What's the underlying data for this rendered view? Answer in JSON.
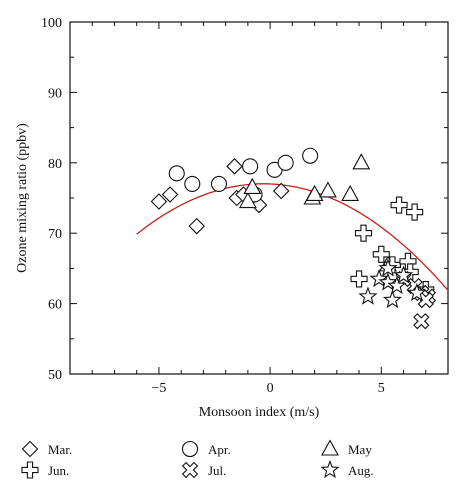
{
  "chart_data": {
    "type": "scatter",
    "title": "",
    "xlabel": "Monsoon index (m/s)",
    "ylabel": "Ozone mixing ratio (ppbv)",
    "xlim": [
      -9,
      8
    ],
    "ylim": [
      50,
      100
    ],
    "x_ticks": [
      -5,
      0,
      5
    ],
    "y_ticks": [
      50,
      60,
      70,
      80,
      90,
      100
    ],
    "x_tick_labels": [
      "−5",
      "0",
      "5"
    ],
    "y_tick_labels": [
      "50",
      "60",
      "70",
      "80",
      "90",
      "100"
    ],
    "grid": false,
    "legend_placement": "below plot, three columns",
    "legend_order": [
      "Mar.",
      "Apr.",
      "May",
      "Jun.",
      "Jul.",
      "Aug."
    ],
    "fit_color": "#cc1f1f",
    "fit_curve": {
      "type": "quadratic",
      "coefficients": [
        77.0,
        -0.13,
        -0.22
      ],
      "x_range": [
        -6,
        8.2
      ]
    },
    "series": [
      {
        "name": "Mar.",
        "marker": "diamond",
        "points": [
          [
            -5.0,
            74.5
          ],
          [
            -4.5,
            75.5
          ],
          [
            -3.3,
            71.0
          ],
          [
            -1.6,
            79.5
          ],
          [
            -1.5,
            75.0
          ],
          [
            -1.2,
            75.5
          ],
          [
            -0.5,
            74.0
          ],
          [
            0.5,
            76.0
          ]
        ]
      },
      {
        "name": "Apr.",
        "marker": "circle",
        "points": [
          [
            -4.2,
            78.5
          ],
          [
            -3.5,
            77.0
          ],
          [
            -2.3,
            77.0
          ],
          [
            -0.9,
            79.5
          ],
          [
            0.2,
            79.0
          ],
          [
            0.7,
            80.0
          ],
          [
            1.8,
            81.0
          ],
          [
            -0.7,
            75.5
          ]
        ]
      },
      {
        "name": "May",
        "marker": "triangle",
        "points": [
          [
            -1.0,
            74.5
          ],
          [
            -0.8,
            76.5
          ],
          [
            1.9,
            75.0
          ],
          [
            2.0,
            75.5
          ],
          [
            2.6,
            76.0
          ],
          [
            3.6,
            75.5
          ],
          [
            4.1,
            80.0
          ],
          [
            5.3,
            65.5
          ]
        ]
      },
      {
        "name": "Jun.",
        "marker": "plus",
        "points": [
          [
            4.2,
            70.0
          ],
          [
            5.0,
            67.0
          ],
          [
            5.8,
            74.0
          ],
          [
            6.5,
            73.0
          ],
          [
            4.0,
            63.5
          ],
          [
            5.5,
            65.5
          ],
          [
            6.2,
            66.0
          ],
          [
            6.3,
            64.5
          ],
          [
            7.0,
            62.0
          ]
        ]
      },
      {
        "name": "Jul.",
        "marker": "x",
        "points": [
          [
            6.5,
            62.5
          ],
          [
            6.8,
            61.5
          ],
          [
            6.8,
            57.5
          ],
          [
            7.1,
            61.0
          ],
          [
            6.0,
            63.5
          ],
          [
            7.0,
            60.5
          ]
        ]
      },
      {
        "name": "Aug.",
        "marker": "star",
        "points": [
          [
            4.4,
            61.0
          ],
          [
            4.9,
            63.5
          ],
          [
            5.3,
            63.0
          ],
          [
            5.5,
            60.5
          ],
          [
            5.7,
            62.5
          ],
          [
            6.0,
            64.0
          ],
          [
            6.6,
            61.5
          ],
          [
            5.3,
            65.0
          ]
        ]
      }
    ]
  }
}
